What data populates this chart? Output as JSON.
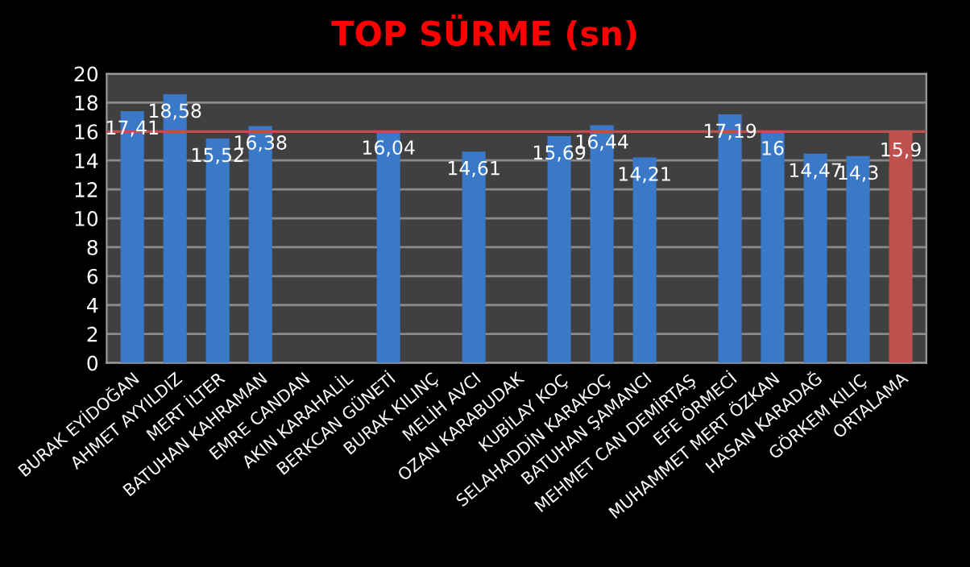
{
  "chart_data": {
    "type": "bar",
    "title": "TOP SÜRME (sn)",
    "categories": [
      "BURAK EYİDOĞAN",
      "AHMET AYYILDIZ",
      "MERT İLTER",
      "BATUHAN KAHRAMAN",
      "EMRE CANDAN",
      "AKIN KARAHALİL",
      "BERKCAN GÜNETİ",
      "BURAK KILINÇ",
      "MELİH AVCI",
      "OZAN KARABUDAK",
      "KUBİLAY KOÇ",
      "SELAHADDİN KARAKOÇ",
      "BATUHAN ŞAMANCI",
      "MEHMET CAN DEMİRTAŞ",
      "EFE ÖRMECİ",
      "MUHAMMET MERT ÖZKAN",
      "HASAN KARADAĞ",
      "GÖRKEM KILIÇ",
      "ORTALAMA"
    ],
    "values": [
      17.41,
      18.58,
      15.52,
      16.38,
      null,
      null,
      16.04,
      null,
      14.61,
      null,
      15.69,
      16.44,
      14.21,
      null,
      17.19,
      16,
      14.47,
      14.3,
      15.9
    ],
    "value_labels": [
      "17,41",
      "18,58",
      "15,52",
      "16,38",
      null,
      null,
      "16,04",
      null,
      "14,61",
      null,
      "15,69",
      "16,44",
      "14,21",
      null,
      "17,19",
      "16",
      "14,47",
      "14,3",
      "15,9"
    ],
    "colors": [
      "#3a78c8",
      "#3a78c8",
      "#3a78c8",
      "#3a78c8",
      "#3a78c8",
      "#3a78c8",
      "#3a78c8",
      "#3a78c8",
      "#3a78c8",
      "#3a78c8",
      "#3a78c8",
      "#3a78c8",
      "#3a78c8",
      "#3a78c8",
      "#3a78c8",
      "#3a78c8",
      "#3a78c8",
      "#3a78c8",
      "#c0504d"
    ],
    "ylim": [
      0,
      20
    ],
    "yticks": [
      0,
      2,
      4,
      6,
      8,
      10,
      12,
      14,
      16,
      18,
      20
    ],
    "ref_lines": [
      {
        "axis": "y",
        "value": 16,
        "color": "#c0504d"
      }
    ],
    "grid": "y",
    "legend": false
  }
}
